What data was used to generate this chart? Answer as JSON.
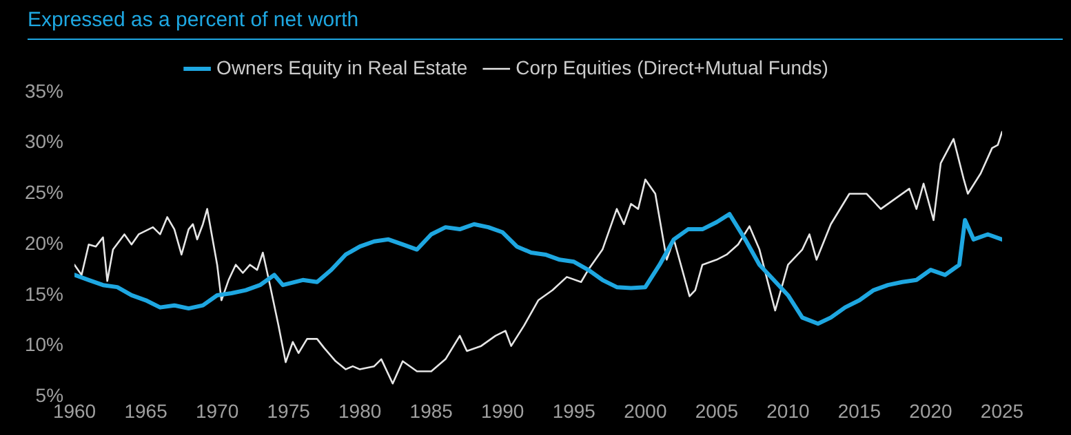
{
  "chart_data": {
    "type": "line",
    "title": "Expressed as a percent of net worth",
    "series": [
      {
        "name": "Owners Equity in Real Estate",
        "color": "#1ea7e1",
        "x": [
          1960,
          1961,
          1962,
          1963,
          1964,
          1965,
          1966,
          1967,
          1968,
          1969,
          1970,
          1971,
          1972,
          1973,
          1974,
          1974.6,
          1976,
          1977,
          1978,
          1979,
          1980,
          1981,
          1982,
          1983,
          1984,
          1985,
          1986,
          1987,
          1988,
          1989,
          1990,
          1991,
          1992,
          1993,
          1994,
          1995,
          1996,
          1997,
          1998,
          1999,
          2000,
          2001,
          2002,
          2003,
          2004,
          2005,
          2005.9,
          2007,
          2008,
          2009,
          2010,
          2011,
          2012.1,
          2013,
          2014,
          2015,
          2016,
          2017,
          2018,
          2019,
          2020,
          2021,
          2022,
          2022.4,
          2023,
          2024,
          2025
        ],
        "values": [
          17,
          16.5,
          16,
          15.8,
          15,
          14.5,
          13.8,
          14,
          13.7,
          14,
          15,
          15.2,
          15.5,
          16,
          17,
          16,
          16.5,
          16.3,
          17.5,
          19,
          19.8,
          20.3,
          20.5,
          20,
          19.5,
          21,
          21.7,
          21.5,
          22,
          21.7,
          21.2,
          19.8,
          19.2,
          19,
          18.5,
          18.3,
          17.5,
          16.5,
          15.8,
          15.7,
          15.8,
          18,
          20.5,
          21.5,
          21.5,
          22.2,
          23,
          20.5,
          18,
          16.5,
          15,
          12.8,
          12.2,
          12.8,
          13.8,
          14.5,
          15.5,
          16,
          16.3,
          16.5,
          17.5,
          17,
          18,
          22.4,
          20.5,
          21,
          20.5
        ]
      },
      {
        "name": "Corp Equities (Direct+Mutual Funds)",
        "color": "#e6e6e6",
        "x": [
          1960,
          1960.5,
          1961,
          1961.5,
          1962,
          1962.3,
          1962.7,
          1963.5,
          1964,
          1964.5,
          1965.5,
          1966,
          1966.5,
          1967,
          1967.5,
          1968,
          1968.3,
          1968.6,
          1969,
          1969.3,
          1970,
          1970.3,
          1970.8,
          1971.3,
          1971.8,
          1972.3,
          1972.8,
          1973.2,
          1973.7,
          1974.3,
          1974.8,
          1975.3,
          1975.7,
          1976.3,
          1977,
          1977.5,
          1978.3,
          1979,
          1979.5,
          1980,
          1981,
          1981.5,
          1982.3,
          1983,
          1984,
          1985,
          1986,
          1987,
          1987.5,
          1988.5,
          1989.5,
          1990.2,
          1990.6,
          1991.5,
          1992.5,
          1993.5,
          1994.5,
          1995.5,
          1996,
          1997,
          1998,
          1998.5,
          1999,
          1999.5,
          2000,
          2000.7,
          2001.5,
          2002,
          2003.1,
          2003.5,
          2004,
          2005,
          2005.7,
          2006.5,
          2007.3,
          2008,
          2009.1,
          2010,
          2011,
          2011.5,
          2012,
          2013,
          2014.3,
          2015.5,
          2016.5,
          2017.5,
          2018.5,
          2019,
          2019.5,
          2020.2,
          2020.7,
          2021.6,
          2022.3,
          2022.6,
          2023.5,
          2024.3,
          2024.7,
          2025
        ],
        "values": [
          18,
          17,
          20,
          19.8,
          20.7,
          16.4,
          19.5,
          21,
          20,
          21,
          21.7,
          21,
          22.7,
          21.5,
          19,
          21.5,
          22,
          20.5,
          22,
          23.5,
          18,
          14.5,
          16.5,
          18,
          17.2,
          18,
          17.5,
          19.2,
          16,
          12,
          8.4,
          10.4,
          9.3,
          10.7,
          10.7,
          9.8,
          8.5,
          7.7,
          8,
          7.7,
          8,
          8.7,
          6.3,
          8.5,
          7.5,
          7.5,
          8.7,
          11,
          9.5,
          10,
          11,
          11.5,
          10,
          12,
          14.5,
          15.5,
          16.8,
          16.3,
          17.5,
          19.5,
          23.5,
          22,
          24,
          23.5,
          26.4,
          25,
          18.5,
          20.5,
          14.9,
          15.5,
          18,
          18.5,
          19,
          20,
          21.8,
          19.5,
          13.5,
          18,
          19.5,
          21,
          18.5,
          22,
          25,
          25,
          23.5,
          24.5,
          25.5,
          23.5,
          26,
          22.4,
          28,
          30.4,
          26.5,
          25,
          27,
          29.5,
          29.8,
          31.1
        ]
      }
    ],
    "xlim": [
      1960,
      2025
    ],
    "xticks": [
      1960,
      1965,
      1970,
      1975,
      1980,
      1985,
      1990,
      1995,
      2000,
      2005,
      2010,
      2015,
      2020,
      2025
    ],
    "ylim": [
      5,
      35
    ],
    "yticks": [
      {
        "value": 5,
        "label": "5%"
      },
      {
        "value": 10,
        "label": "10%"
      },
      {
        "value": 15,
        "label": "15%"
      },
      {
        "value": 20,
        "label": "20%"
      },
      {
        "value": 25,
        "label": "25%"
      },
      {
        "value": 30,
        "label": "30%"
      },
      {
        "value": 35,
        "label": "35%"
      }
    ],
    "legend": "top",
    "marker": "none",
    "line_style": "solid"
  }
}
